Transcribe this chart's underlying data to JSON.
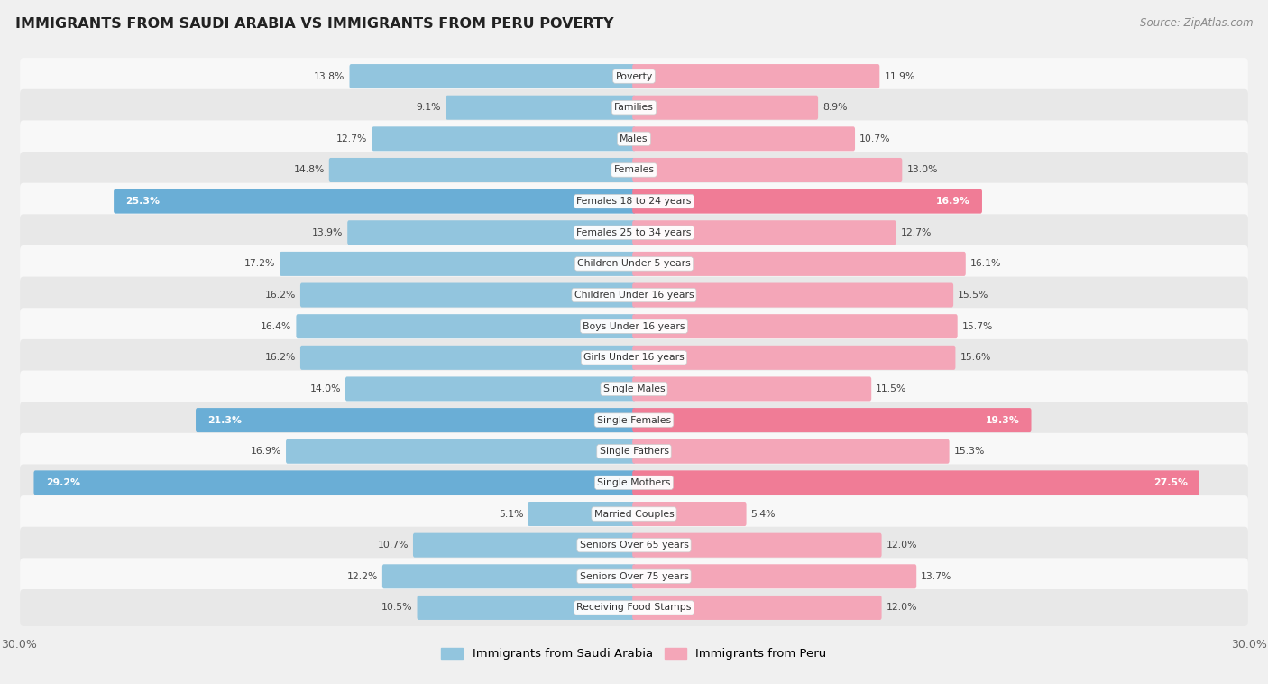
{
  "title": "IMMIGRANTS FROM SAUDI ARABIA VS IMMIGRANTS FROM PERU POVERTY",
  "source": "Source: ZipAtlas.com",
  "categories": [
    "Poverty",
    "Families",
    "Males",
    "Females",
    "Females 18 to 24 years",
    "Females 25 to 34 years",
    "Children Under 5 years",
    "Children Under 16 years",
    "Boys Under 16 years",
    "Girls Under 16 years",
    "Single Males",
    "Single Females",
    "Single Fathers",
    "Single Mothers",
    "Married Couples",
    "Seniors Over 65 years",
    "Seniors Over 75 years",
    "Receiving Food Stamps"
  ],
  "saudi_values": [
    13.8,
    9.1,
    12.7,
    14.8,
    25.3,
    13.9,
    17.2,
    16.2,
    16.4,
    16.2,
    14.0,
    21.3,
    16.9,
    29.2,
    5.1,
    10.7,
    12.2,
    10.5
  ],
  "peru_values": [
    11.9,
    8.9,
    10.7,
    13.0,
    16.9,
    12.7,
    16.1,
    15.5,
    15.7,
    15.6,
    11.5,
    19.3,
    15.3,
    27.5,
    5.4,
    12.0,
    13.7,
    12.0
  ],
  "saudi_color": "#92c5de",
  "peru_color": "#f4a6b8",
  "saudi_highlight_color": "#6aaed6",
  "peru_highlight_color": "#f07c96",
  "highlight_rows": [
    4,
    11,
    13
  ],
  "max_value": 30.0,
  "background_color": "#f0f0f0",
  "row_bg_even": "#e8e8e8",
  "row_bg_odd": "#f8f8f8",
  "legend_saudi": "Immigrants from Saudi Arabia",
  "legend_peru": "Immigrants from Peru"
}
